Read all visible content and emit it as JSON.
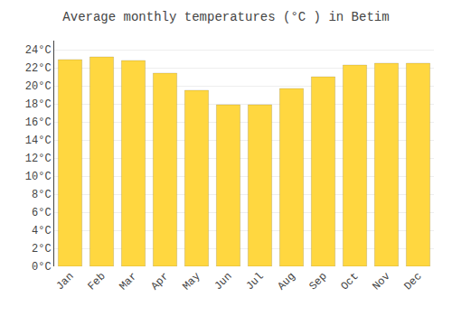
{
  "chart_data": {
    "type": "bar",
    "title": "Average monthly temperatures (°C ) in Betim",
    "categories": [
      "Jan",
      "Feb",
      "Mar",
      "Apr",
      "May",
      "Jun",
      "Jul",
      "Aug",
      "Sep",
      "Oct",
      "Nov",
      "Dec"
    ],
    "values": [
      22.9,
      23.2,
      22.8,
      21.4,
      19.5,
      17.9,
      17.9,
      19.7,
      21.0,
      22.3,
      22.5,
      22.5
    ],
    "color": "#FFD740",
    "ylim": [
      0,
      25
    ],
    "yticks": [
      {
        "value": 0,
        "label": "0°C"
      },
      {
        "value": 2,
        "label": "2°C"
      },
      {
        "value": 4,
        "label": "4°C"
      },
      {
        "value": 6,
        "label": "6°C"
      },
      {
        "value": 8,
        "label": "8°C"
      },
      {
        "value": 10,
        "label": "10°C"
      },
      {
        "value": 12,
        "label": "12°C"
      },
      {
        "value": 14,
        "label": "14°C"
      },
      {
        "value": 16,
        "label": "16°C"
      },
      {
        "value": 18,
        "label": "18°C"
      },
      {
        "value": 20,
        "label": "20°C"
      },
      {
        "value": 22,
        "label": "22°C"
      },
      {
        "value": 24,
        "label": "24°C"
      }
    ],
    "grid": true
  }
}
